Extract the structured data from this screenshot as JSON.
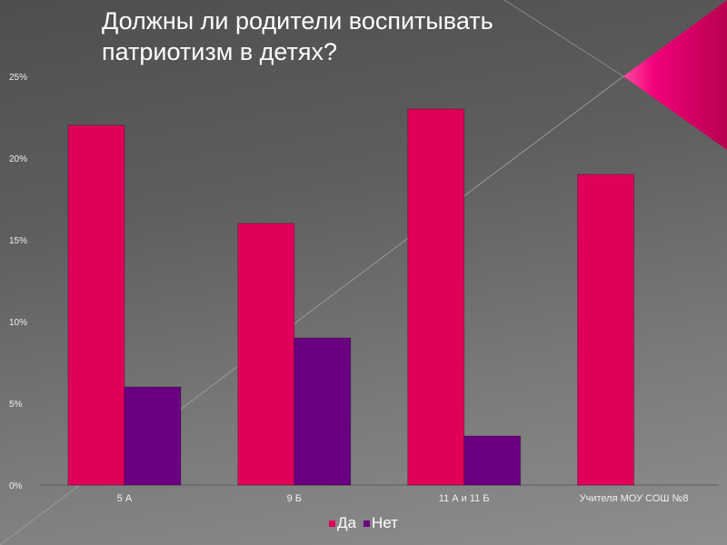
{
  "title_line1": "Должны ли родители воспитывать",
  "title_line2": "патриотизм в детях?",
  "chart_data": {
    "type": "bar",
    "title": "Должны ли родители воспитывать патриотизм в детях?",
    "categories": [
      "5 А",
      "9 Б",
      "11 А и 11 Б",
      "Учителя МОУ СОШ №8"
    ],
    "series": [
      {
        "name": "Да",
        "color": "#e0005a",
        "values": [
          22,
          16,
          23,
          19
        ]
      },
      {
        "name": "Нет",
        "color": "#6a0080",
        "values": [
          6,
          9,
          3,
          0
        ]
      }
    ],
    "ylim": [
      0,
      25
    ],
    "yticks": [
      "0%",
      "5%",
      "10%",
      "15%",
      "20%",
      "25%"
    ],
    "legend": "bottom"
  }
}
